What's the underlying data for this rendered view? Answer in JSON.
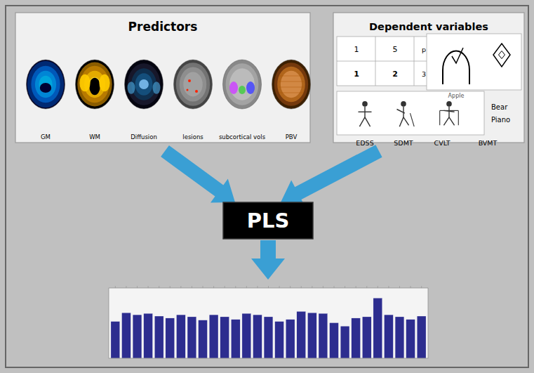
{
  "chart_data": {
    "type": "bar",
    "categories": [
      null,
      null,
      null,
      null,
      null,
      null,
      null,
      null,
      null,
      null,
      null,
      null,
      null,
      null,
      null,
      null,
      null,
      null,
      null,
      null,
      null,
      null,
      null,
      null,
      null,
      null,
      null,
      null,
      null
    ],
    "values": [
      0.55,
      0.68,
      0.65,
      0.67,
      0.63,
      0.6,
      0.65,
      0.62,
      0.57,
      0.65,
      0.62,
      0.58,
      0.67,
      0.65,
      0.62,
      0.55,
      0.58,
      0.7,
      0.68,
      0.67,
      0.53,
      0.48,
      0.6,
      0.62,
      0.9,
      0.65,
      0.62,
      0.58,
      0.63
    ],
    "color": "#2d2d8f",
    "ylim": [
      0,
      1.05
    ],
    "tick_labels": false,
    "annotations": [
      "Predictors",
      "GM",
      "WM",
      "Diffusion",
      "lesions",
      "subcortical vols",
      "PBV",
      "Dependent variables",
      "EDSS",
      "SDMT",
      "CVLT",
      "BVMT",
      "PLS",
      "1",
      "5",
      "p",
      "1",
      "2",
      "3",
      "Apple",
      "Bear",
      "Piano"
    ]
  }
}
